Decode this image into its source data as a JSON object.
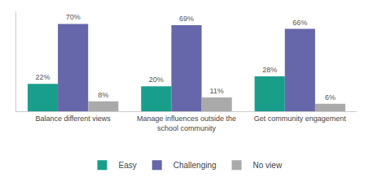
{
  "chart_data": {
    "type": "bar",
    "categories": [
      "Balance different views",
      "Manage influences outside the\nschool community",
      "Get community engagement"
    ],
    "series": [
      {
        "name": "Easy",
        "color": "#1a9e8c",
        "values": [
          22,
          20,
          28
        ],
        "value_labels": [
          "22%",
          "20%",
          "28%"
        ]
      },
      {
        "name": "Challenging",
        "color": "#6666aa",
        "values": [
          70,
          69,
          66
        ],
        "value_labels": [
          "70%",
          "69%",
          "66%"
        ]
      },
      {
        "name": "No view",
        "color": "#aaaaaa",
        "values": [
          8,
          11,
          6
        ],
        "value_labels": [
          "8%",
          "11%",
          "6%"
        ]
      }
    ],
    "ylim": [
      0,
      80
    ],
    "grid": false,
    "legend": "bottom",
    "data_labels": true,
    "tick_labels": "x"
  }
}
